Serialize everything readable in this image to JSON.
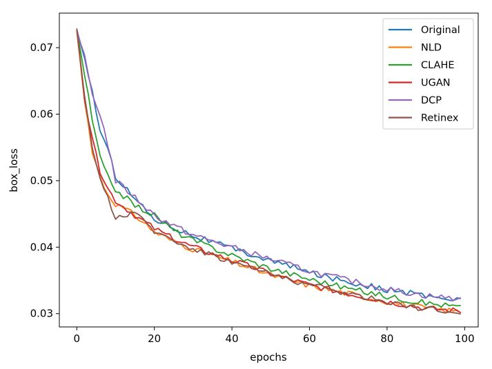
{
  "chart_data": {
    "type": "line",
    "title": "",
    "xlabel": "epochs",
    "ylabel": "box_loss",
    "xlim": [
      -4.5,
      103.5
    ],
    "ylim": [
      0.028,
      0.0752
    ],
    "x_ticks": [
      0,
      20,
      40,
      60,
      80,
      100
    ],
    "x_tick_labels": [
      "0",
      "20",
      "40",
      "60",
      "80",
      "100"
    ],
    "y_ticks": [
      0.03,
      0.04,
      0.05,
      0.06,
      0.07
    ],
    "y_tick_labels": [
      "0.03",
      "0.04",
      "0.05",
      "0.06",
      "0.07"
    ],
    "grid": false,
    "legend_position": "top-right",
    "anchors": [
      0,
      2,
      4,
      6,
      8,
      10,
      15,
      20,
      25,
      30,
      40,
      50,
      60,
      70,
      80,
      90,
      99
    ],
    "series": [
      {
        "name": "Original",
        "color": "#1f77b4",
        "values": [
          0.0727,
          0.0683,
          0.0635,
          0.0575,
          0.0545,
          0.0507,
          0.0473,
          0.0443,
          0.043,
          0.0418,
          0.0398,
          0.038,
          0.0362,
          0.0348,
          0.0336,
          0.0327,
          0.032
        ]
      },
      {
        "name": "NLD",
        "color": "#ff7f0e",
        "values": [
          0.0725,
          0.062,
          0.0545,
          0.0505,
          0.048,
          0.0465,
          0.0448,
          0.0423,
          0.0408,
          0.0397,
          0.0378,
          0.0358,
          0.0342,
          0.033,
          0.0318,
          0.0308,
          0.0303
        ]
      },
      {
        "name": "CLAHE",
        "color": "#2ca02c",
        "values": [
          0.0727,
          0.066,
          0.059,
          0.0535,
          0.0505,
          0.0487,
          0.0463,
          0.0448,
          0.0425,
          0.041,
          0.0388,
          0.0368,
          0.0352,
          0.0338,
          0.0326,
          0.0316,
          0.031
        ]
      },
      {
        "name": "UGAN",
        "color": "#d62728",
        "values": [
          0.0727,
          0.0625,
          0.056,
          0.0515,
          0.0488,
          0.047,
          0.0448,
          0.0428,
          0.0412,
          0.04,
          0.038,
          0.036,
          0.0343,
          0.033,
          0.0318,
          0.0308,
          0.0304
        ]
      },
      {
        "name": "DCP",
        "color": "#9467bd",
        "values": [
          0.0727,
          0.0685,
          0.063,
          0.06,
          0.0555,
          0.05,
          0.0475,
          0.0448,
          0.0432,
          0.0418,
          0.04,
          0.0382,
          0.0364,
          0.035,
          0.0337,
          0.0327,
          0.0322
        ]
      },
      {
        "name": "Retinex",
        "color": "#8c564b",
        "values": [
          0.0729,
          0.0625,
          0.0545,
          0.0505,
          0.0475,
          0.0445,
          0.045,
          0.0425,
          0.041,
          0.0398,
          0.0378,
          0.036,
          0.0343,
          0.033,
          0.0318,
          0.0307,
          0.0302
        ]
      }
    ]
  }
}
